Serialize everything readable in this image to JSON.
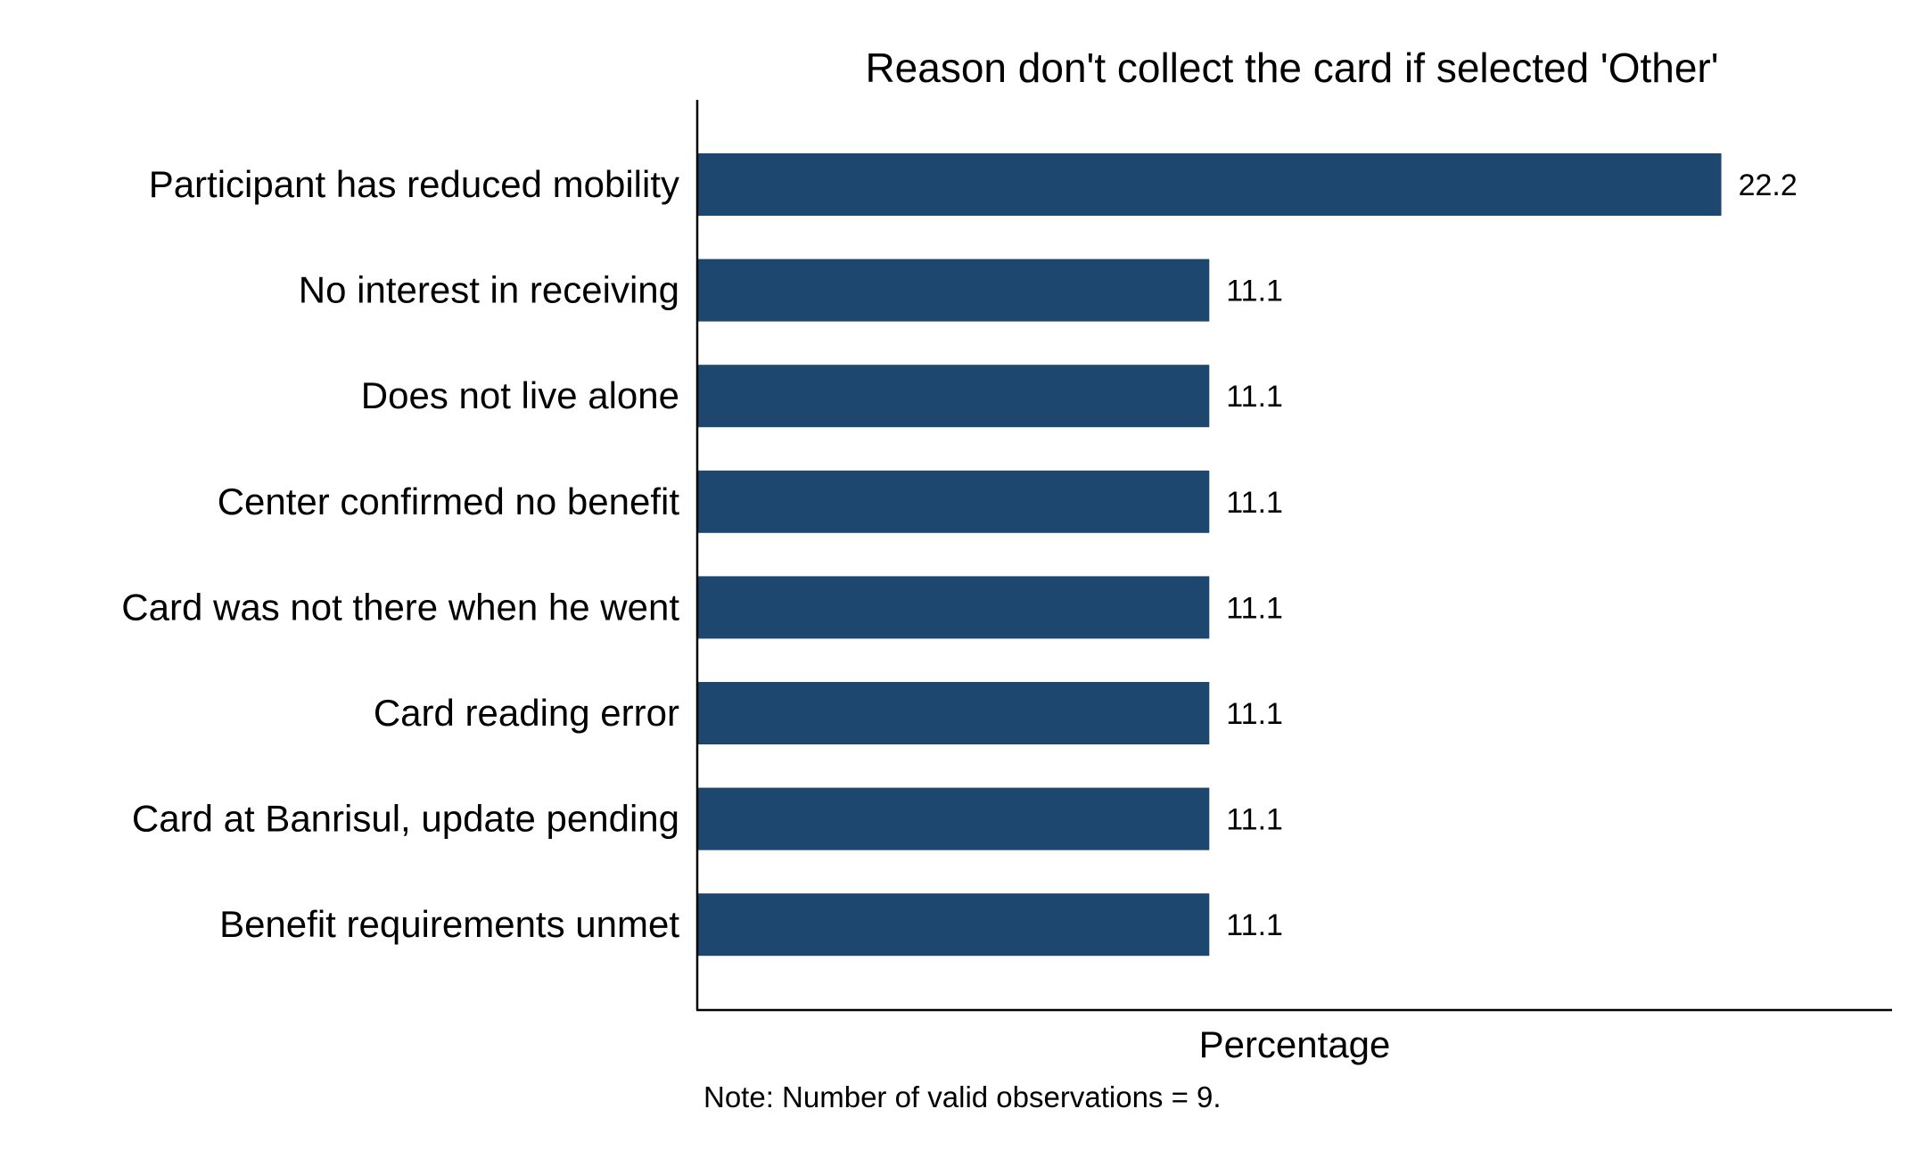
{
  "chart_data": {
    "type": "bar",
    "orientation": "horizontal",
    "title": "Reason don't collect the card if selected 'Other'",
    "xlabel": "Percentage",
    "ylabel": "",
    "note": "Note: Number of valid observations = 9.",
    "categories": [
      "Participant has reduced mobility",
      "No interest in receiving",
      "Does not live alone",
      "Center confirmed no benefit",
      "Card was not there when he went",
      "Card reading error",
      "Card at Banrisul, update pending",
      "Benefit requirements unmet"
    ],
    "values": [
      22.2,
      11.1,
      11.1,
      11.1,
      11.1,
      11.1,
      11.1,
      11.1
    ],
    "value_labels": [
      "22.2",
      "11.1",
      "11.1",
      "11.1",
      "11.1",
      "11.1",
      "11.1",
      "11.1"
    ],
    "xlim": [
      0,
      25.9
    ],
    "grid": false,
    "legend": "none",
    "bar_color": "#1d476e",
    "axis_color": "#000000"
  }
}
